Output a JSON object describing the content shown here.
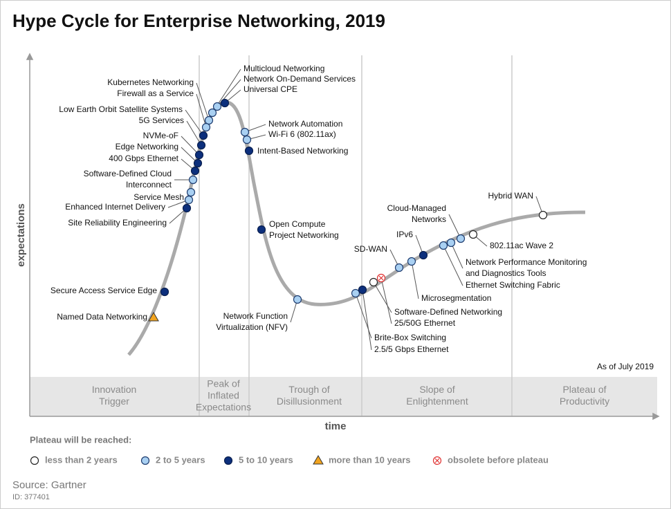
{
  "title": "Hype Cycle for Enterprise Networking, 2019",
  "y_axis_label": "expectations",
  "x_axis_label": "time",
  "as_of": "As of July 2019",
  "phases": [
    [
      "Innovation",
      "Trigger"
    ],
    [
      "Peak of",
      "Inflated",
      "Expectations"
    ],
    [
      "Trough of",
      "Disillusionment"
    ],
    [
      "Slope of",
      "Enlightenment"
    ],
    [
      "Plateau of",
      "Productivity"
    ]
  ],
  "legend": {
    "title": "Plateau will be reached:",
    "items": [
      {
        "label": "less than 2 years",
        "technologies": [
          "Hybrid WAN",
          "802.11ac Wave 2",
          "Software-Defined Networking"
        ]
      },
      {
        "label": "2 to 5 years",
        "technologies": [
          "Network On-Demand Services",
          "Multicloud Networking",
          "Kubernetes Networking",
          "Firewall as a Service",
          [
            "Software-Defined Cloud",
            "Interconnect"
          ],
          "Service Mesh",
          "Enhanced Internet Delivery",
          "Network Automation",
          "Wi-Fi 6 (802.11ax)",
          [
            "Network Function",
            "Virtualization (NFV)"
          ],
          "Brite-Box Switching",
          "SD-WAN",
          "Microsegmentation",
          "Ethernet Switching Fabric",
          [
            "Network Performance Monitoring",
            "and Diagnostics Tools"
          ],
          [
            "Cloud-Managed",
            "Networks"
          ]
        ]
      },
      {
        "label": "5 to 10 years",
        "technologies": [
          "Universal CPE",
          "Low Earth Orbit Satellite Systems",
          "5G Services",
          "NVMe-oF",
          "Edge Networking",
          "400 Gbps Ethernet",
          "Site Reliability Engineering",
          "Secure Access Service Edge",
          "Intent-Based Networking",
          [
            "Open Compute",
            "Project Networking"
          ],
          "2.5/5 Gbps Ethernet",
          "IPv6"
        ]
      },
      {
        "label": "more than 10 years",
        "technologies": [
          "Named Data Networking"
        ]
      },
      {
        "label": "obsolete before plateau",
        "technologies": [
          "25/50G Ethernet"
        ]
      }
    ]
  },
  "source": "Source: Gartner",
  "id": "ID: 377401"
}
